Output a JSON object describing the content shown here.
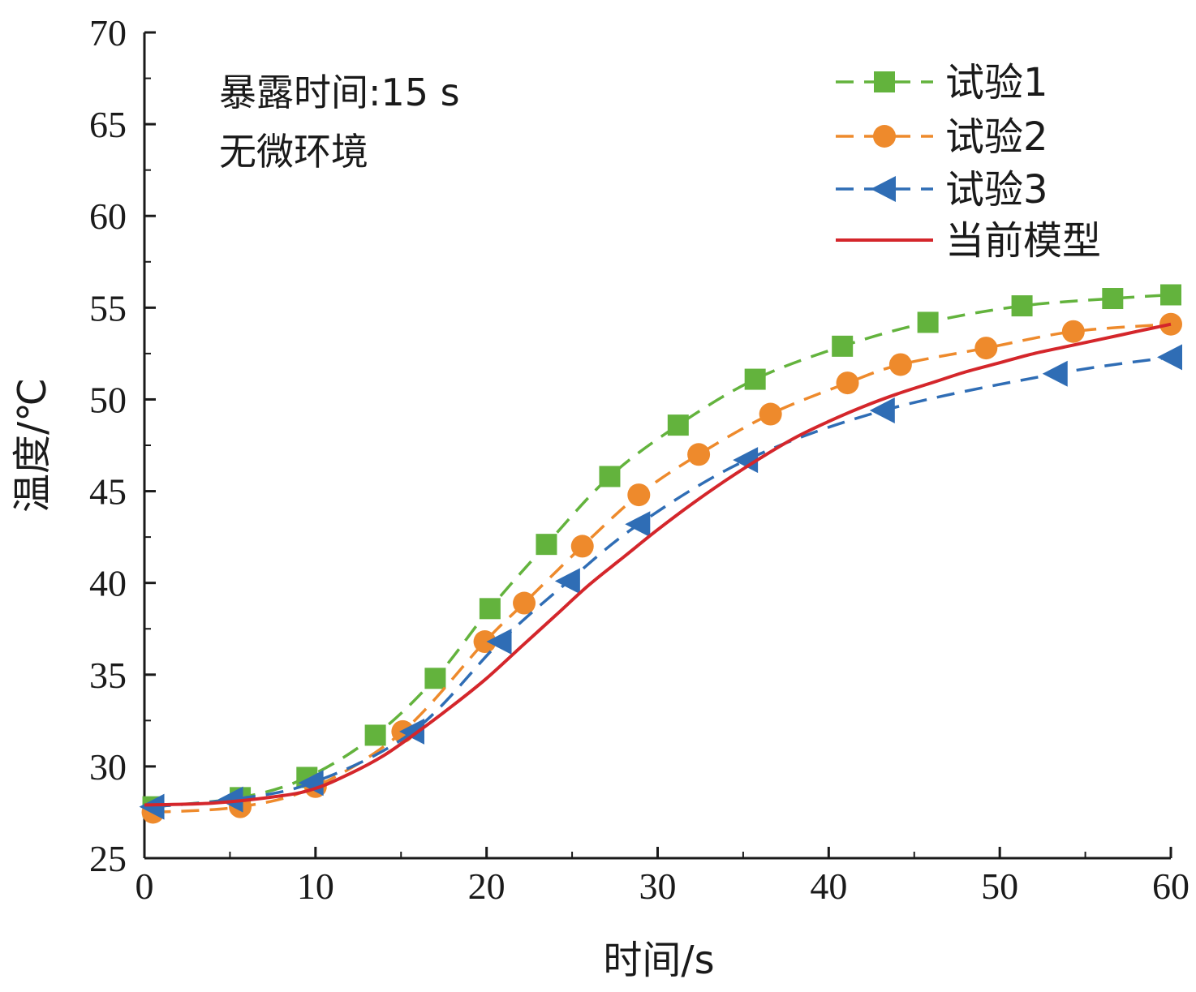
{
  "chart_data": {
    "type": "line",
    "xlabel": "时间/s",
    "ylabel": "温度/℃",
    "xlim": [
      0,
      60
    ],
    "ylim": [
      25,
      70
    ],
    "xticks": [
      0,
      10,
      20,
      30,
      40,
      50,
      60
    ],
    "yticks": [
      25,
      30,
      35,
      40,
      45,
      50,
      55,
      60,
      65,
      70
    ],
    "grid": false,
    "legend_position": "top-right",
    "annotations": [
      "暴露时间:15 s",
      "无微环境"
    ],
    "series": [
      {
        "name": "试验1",
        "color": "#63b33d",
        "style": "dashed",
        "marker": "square",
        "x": [
          0.5,
          5.6,
          9.5,
          13.5,
          17.0,
          20.2,
          23.5,
          27.2,
          31.2,
          35.7,
          40.8,
          45.8,
          51.3,
          56.6,
          60.0
        ],
        "y": [
          27.8,
          28.3,
          29.4,
          31.7,
          34.8,
          38.6,
          42.1,
          45.8,
          48.6,
          51.1,
          52.9,
          54.2,
          55.1,
          55.5,
          55.7
        ]
      },
      {
        "name": "试验2",
        "color": "#ee8a2c",
        "style": "dashed",
        "marker": "circle",
        "x": [
          0.5,
          5.6,
          10.0,
          15.1,
          19.9,
          22.2,
          25.6,
          28.9,
          32.4,
          36.6,
          41.1,
          44.2,
          49.2,
          54.3,
          60.0
        ],
        "y": [
          27.5,
          27.8,
          28.9,
          31.9,
          36.8,
          38.9,
          42.0,
          44.8,
          47.0,
          49.2,
          50.9,
          51.9,
          52.8,
          53.7,
          54.1
        ]
      },
      {
        "name": "试验3",
        "color": "#2f6db5",
        "style": "dashed",
        "marker": "triangle-left",
        "x": [
          0.5,
          5.1,
          9.8,
          15.7,
          20.8,
          24.8,
          28.9,
          35.2,
          43.2,
          53.3,
          60.0
        ],
        "y": [
          27.8,
          28.2,
          29.1,
          31.9,
          36.8,
          40.1,
          43.2,
          46.7,
          49.4,
          51.4,
          52.3
        ]
      },
      {
        "name": "当前模型",
        "color": "#d4262b",
        "style": "solid",
        "marker": "none",
        "x": [
          0,
          4,
          8,
          10,
          12,
          14,
          16,
          18,
          20,
          22,
          24,
          26,
          28,
          30,
          32,
          34,
          36,
          38,
          40,
          42,
          44,
          46,
          48,
          50,
          52,
          54,
          56,
          58,
          60
        ],
        "y": [
          27.9,
          28.0,
          28.4,
          28.8,
          29.6,
          30.6,
          31.9,
          33.3,
          34.8,
          36.5,
          38.2,
          39.9,
          41.4,
          42.9,
          44.3,
          45.6,
          46.8,
          47.9,
          48.8,
          49.6,
          50.3,
          50.9,
          51.5,
          52.0,
          52.5,
          52.9,
          53.3,
          53.7,
          54.1
        ]
      }
    ]
  }
}
